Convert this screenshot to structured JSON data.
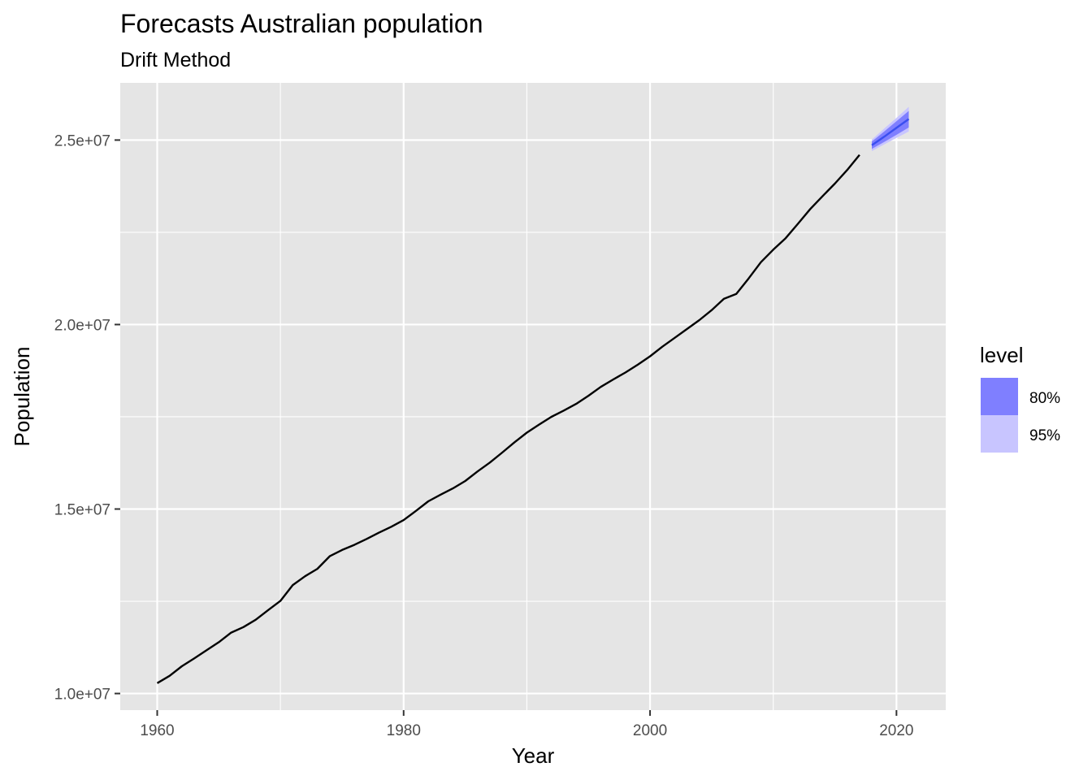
{
  "chart_data": {
    "type": "line",
    "title": "Forecasts Australian population",
    "subtitle": "Drift Method",
    "xlabel": "Year",
    "ylabel": "Population",
    "xlim": [
      1957,
      2024
    ],
    "ylim": [
      9550000,
      26550000
    ],
    "x_ticks": [
      1960,
      1980,
      2000,
      2020
    ],
    "x_tick_labels": [
      "1960",
      "1980",
      "2000",
      "2020"
    ],
    "x_minor_ticks": [
      1970,
      1990,
      2010
    ],
    "y_ticks": [
      10000000,
      15000000,
      20000000,
      25000000
    ],
    "y_tick_labels": [
      "1.0e+07",
      "1.5e+07",
      "2.0e+07",
      "2.5e+07"
    ],
    "y_minor_ticks": [
      12500000,
      17500000,
      22500000
    ],
    "grid": true,
    "colors": {
      "panel": "#e5e5e5",
      "grid": "#ffffff",
      "line": "#000000",
      "forecast": "#3a4ff0",
      "pi80": "#7f7fff",
      "pi95": "#c8c5ff",
      "axis_text": "#4d4d4d"
    },
    "series": [
      {
        "name": "Population",
        "x": [
          1960,
          1961,
          1962,
          1963,
          1964,
          1965,
          1966,
          1967,
          1968,
          1969,
          1970,
          1971,
          1972,
          1973,
          1974,
          1975,
          1976,
          1977,
          1978,
          1979,
          1980,
          1981,
          1982,
          1983,
          1984,
          1985,
          1986,
          1987,
          1988,
          1989,
          1990,
          1991,
          1992,
          1993,
          1994,
          1995,
          1996,
          1997,
          1998,
          1999,
          2000,
          2001,
          2002,
          2003,
          2004,
          2005,
          2006,
          2007,
          2008,
          2009,
          2010,
          2011,
          2012,
          2013,
          2014,
          2015,
          2016,
          2017
        ],
        "values": [
          10280000,
          10480000,
          10740000,
          10950000,
          11170000,
          11390000,
          11650000,
          11800000,
          12000000,
          12260000,
          12510000,
          12940000,
          13180000,
          13380000,
          13720000,
          13890000,
          14030000,
          14190000,
          14360000,
          14520000,
          14700000,
          14950000,
          15210000,
          15390000,
          15560000,
          15760000,
          16020000,
          16260000,
          16530000,
          16810000,
          17070000,
          17290000,
          17500000,
          17670000,
          17850000,
          18070000,
          18310000,
          18510000,
          18700000,
          18910000,
          19140000,
          19400000,
          19640000,
          19880000,
          20120000,
          20390000,
          20700000,
          20830000,
          21250000,
          21690000,
          22030000,
          22340000,
          22730000,
          23130000,
          23480000,
          23820000,
          24190000,
          24600000
        ]
      },
      {
        "name": "Forecast",
        "x": [
          2018,
          2019,
          2020,
          2021
        ],
        "values": [
          24860000,
          25090000,
          25330000,
          25570000
        ],
        "pi80_low": [
          24760000,
          24950000,
          25140000,
          25340000
        ],
        "pi80_high": [
          24960000,
          25230000,
          25510000,
          25790000
        ],
        "pi95_low": [
          24700000,
          24880000,
          25060000,
          25230000
        ],
        "pi95_high": [
          25010000,
          25310000,
          25600000,
          25900000
        ]
      }
    ],
    "legend": {
      "title": "level",
      "position": "right",
      "items": [
        {
          "label": "80%",
          "color": "#7f7fff"
        },
        {
          "label": "95%",
          "color": "#c8c5ff"
        }
      ]
    }
  }
}
